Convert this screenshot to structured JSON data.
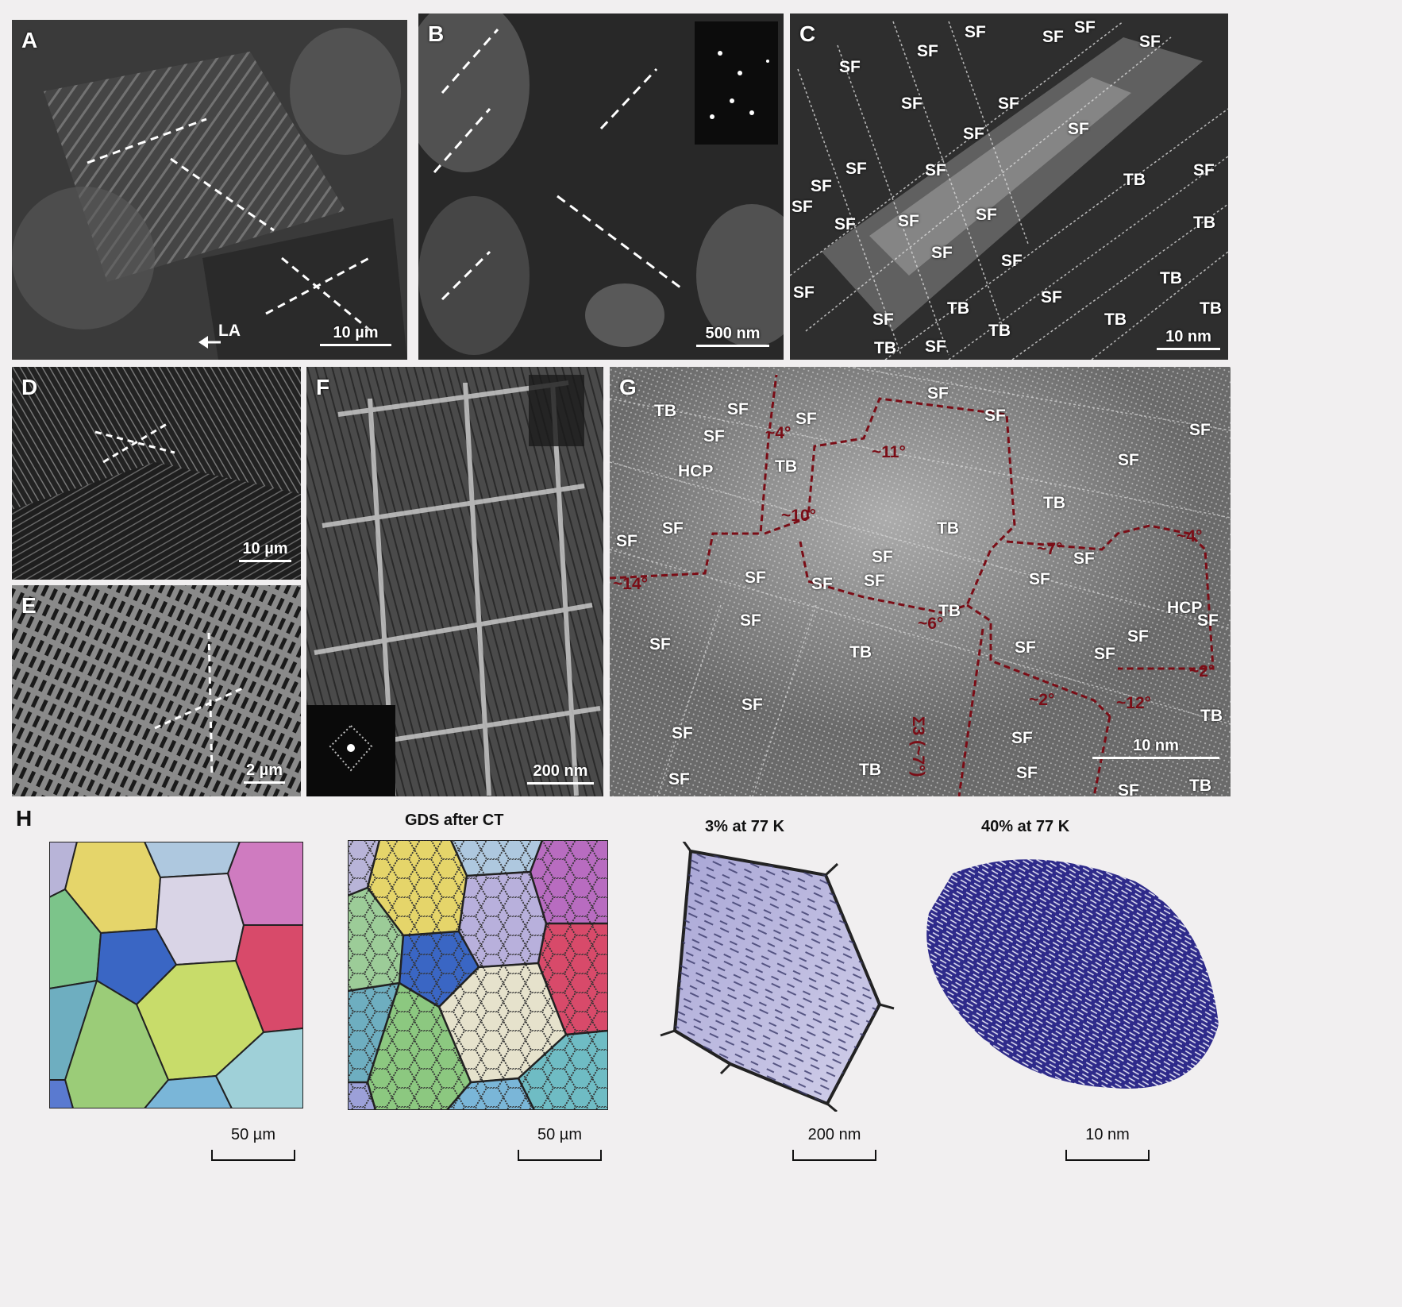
{
  "panels": {
    "A": {
      "label": "A",
      "scale": "10 µm",
      "arrow": "LA"
    },
    "B": {
      "label": "B",
      "scale": "500 nm"
    },
    "C": {
      "label": "C",
      "scale": "10 nm",
      "marks": [
        "SF",
        "SF",
        "SF",
        "SF",
        "SF",
        "SF",
        "SF",
        "SF",
        "SF",
        "SF",
        "SF",
        "SF",
        "SF",
        "SF",
        "SF",
        "SF",
        "SF",
        "SF",
        "SF",
        "SF",
        "SF",
        "SF",
        "SF",
        "SF",
        "TB",
        "TB",
        "TB",
        "TB",
        "TB",
        "TB",
        "TB",
        "TB"
      ]
    },
    "D": {
      "label": "D",
      "scale": "10 µm"
    },
    "E": {
      "label": "E",
      "scale": "2 µm"
    },
    "F": {
      "label": "F",
      "scale": "200 nm"
    },
    "G": {
      "label": "G",
      "scale": "10 nm",
      "marks": [
        "TB",
        "SF",
        "SF",
        "SF",
        "SF",
        "SF",
        "SF",
        "HCP",
        "TB",
        "SF",
        "SF",
        "TB",
        "TB",
        "SF",
        "SF",
        "SF",
        "SF",
        "SF",
        "SF",
        "HCP",
        "SF",
        "SF",
        "SF",
        "TB",
        "SF",
        "SF",
        "TB",
        "SF",
        "SF",
        "SF",
        "SF",
        "SF",
        "TB",
        "SF",
        "TB",
        "TB",
        "SF",
        "SF"
      ],
      "angles": [
        "~4°",
        "~11°",
        "~10°",
        "~14°",
        "~7°",
        "~4°",
        "~6°",
        "~2°",
        "~12°",
        "~2°",
        "Σ3 (~7°)"
      ]
    },
    "H": {
      "label": "H",
      "titles": [
        "GDS after CT",
        "3% at 77 K",
        "40% at 77 K"
      ],
      "scales": [
        "50 µm",
        "50 µm",
        "200 nm",
        "10 nm"
      ]
    }
  },
  "colors": {
    "boundary": "#7a0d16",
    "grains": [
      "#b8b4d8",
      "#e5d56a",
      "#c9c4dc",
      "#cf7bc0",
      "#7cc48a",
      "#3a66c4",
      "#d84a6a",
      "#6eaec0",
      "#c8dc6a",
      "#9bcc78",
      "#7ab6d8",
      "#9fd0d8",
      "#5a7ad0"
    ],
    "deformed": "#3d3a9a"
  }
}
